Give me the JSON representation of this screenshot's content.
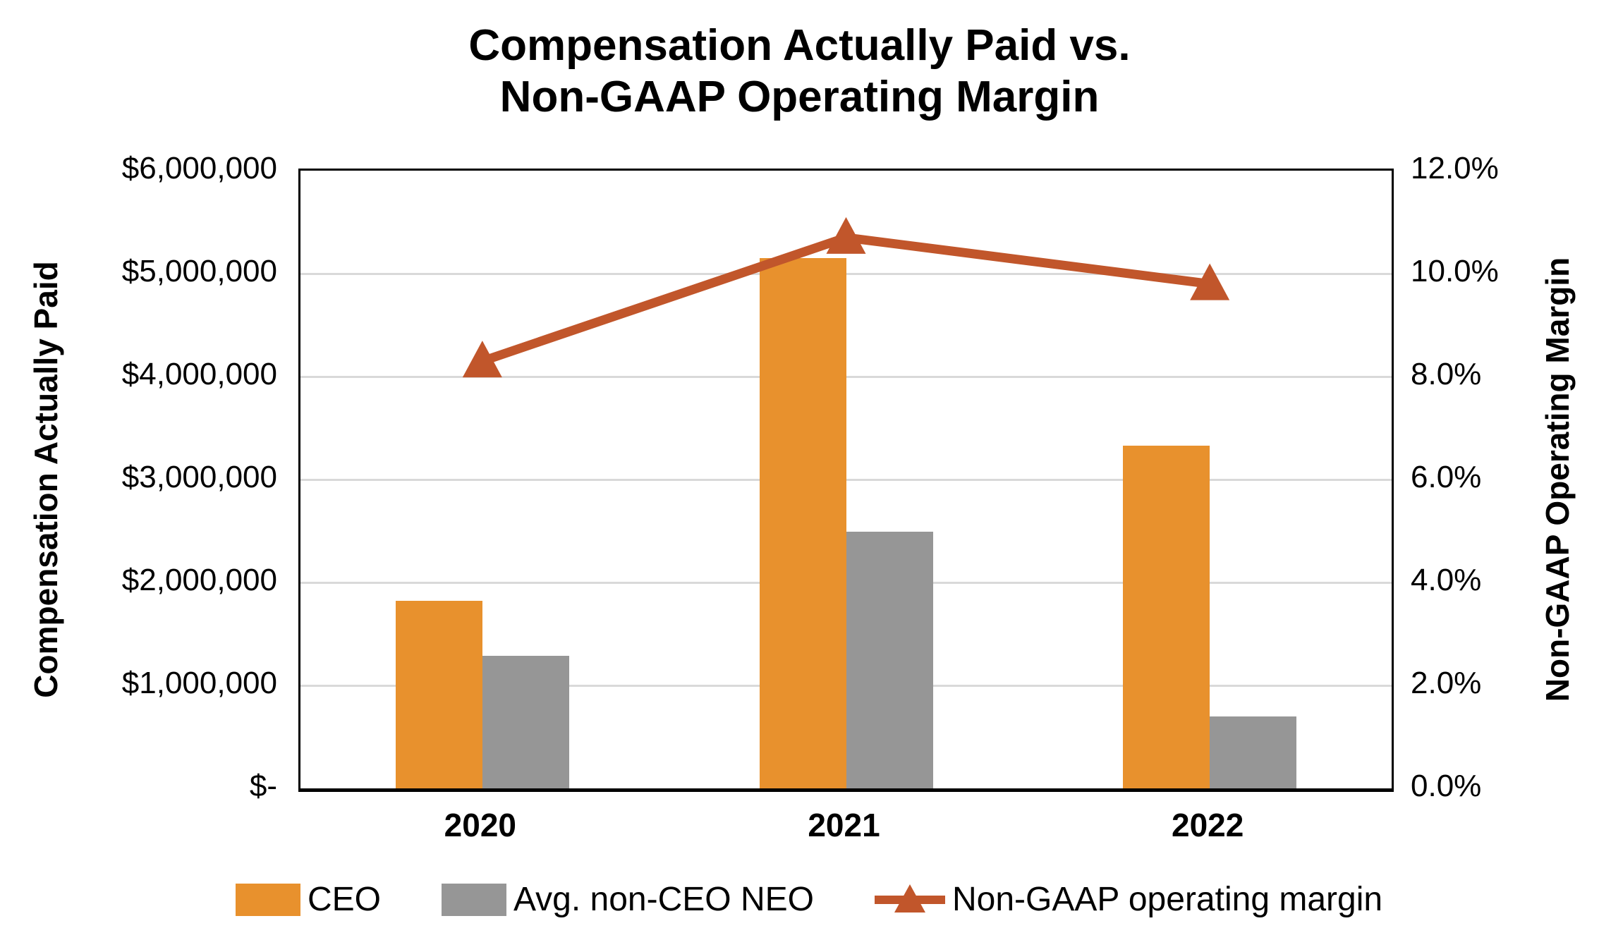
{
  "title": {
    "line1": "Compensation Actually Paid vs.",
    "line2": "Non-GAAP Operating Margin"
  },
  "axes": {
    "left": {
      "title": "Compensation Actually Paid",
      "ticks": [
        "$6,000,000",
        "$5,000,000",
        "$4,000,000",
        "$3,000,000",
        "$2,000,000",
        "$1,000,000",
        "$-"
      ]
    },
    "right": {
      "title": "Non-GAAP Operating Margin",
      "ticks": [
        "12.0%",
        "10.0%",
        "8.0%",
        "6.0%",
        "4.0%",
        "2.0%",
        "0.0%"
      ]
    },
    "x": {
      "categories": [
        "2020",
        "2021",
        "2022"
      ]
    }
  },
  "legend": {
    "items": [
      {
        "label": "CEO",
        "type": "bar",
        "color": "#E8912D"
      },
      {
        "label": "Avg. non-CEO NEO",
        "type": "bar",
        "color": "#969696"
      },
      {
        "label": "Non-GAAP operating margin",
        "type": "line-triangle",
        "color": "#C1562B"
      }
    ]
  },
  "colors": {
    "ceo_bar": "#E8912D",
    "neo_bar": "#969696",
    "margin_line": "#C1562B",
    "gridline": "#D9D9D9",
    "plot_border": "#000000"
  },
  "chart_data": {
    "type": "bar",
    "subtype": "grouped-bars-with-line-overlay",
    "title": "Compensation Actually Paid vs. Non-GAAP Operating Margin",
    "categories": [
      "2020",
      "2021",
      "2022"
    ],
    "series": [
      {
        "name": "CEO",
        "type": "bar",
        "axis": "left",
        "color": "#E8912D",
        "values": [
          1820000,
          5150000,
          3330000
        ]
      },
      {
        "name": "Avg. non-CEO NEO",
        "type": "bar",
        "axis": "left",
        "color": "#969696",
        "values": [
          1290000,
          2490000,
          700000
        ]
      },
      {
        "name": "Non-GAAP operating margin",
        "type": "line",
        "axis": "right",
        "color": "#C1562B",
        "marker": "triangle",
        "values": [
          8.3,
          10.7,
          9.8
        ]
      }
    ],
    "left_axis": {
      "label": "Compensation Actually Paid",
      "min": 0,
      "max": 6000000,
      "tick_step": 1000000,
      "format": "$#,##0"
    },
    "right_axis": {
      "label": "Non-GAAP Operating Margin",
      "min": 0,
      "max": 12,
      "tick_step": 2,
      "format": "0.0%"
    },
    "grid": true,
    "legend_position": "bottom"
  }
}
